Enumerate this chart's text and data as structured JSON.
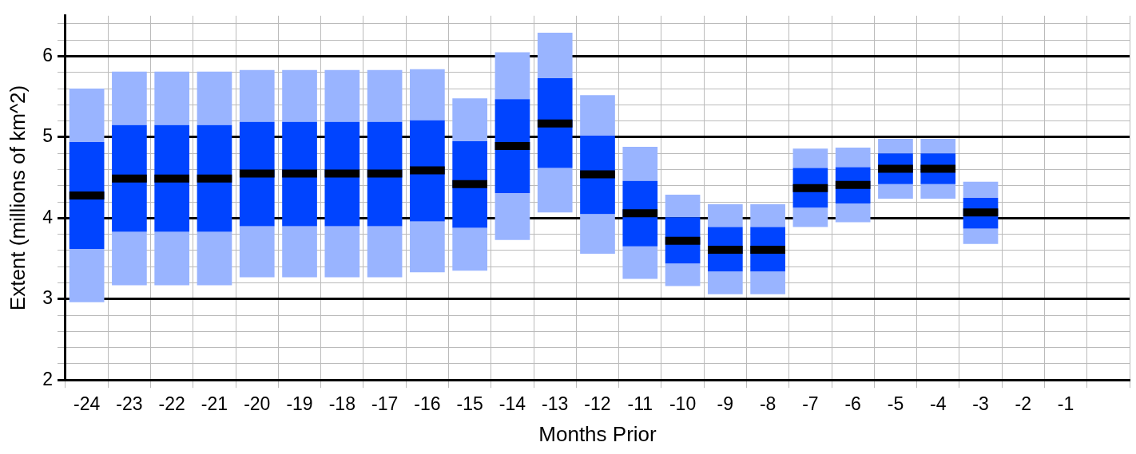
{
  "chart_data": {
    "type": "box",
    "xlabel": "Months Prior",
    "ylabel": "Extent (millions of km^2)",
    "categories": [
      "-24",
      "-23",
      "-22",
      "-21",
      "-20",
      "-19",
      "-18",
      "-17",
      "-16",
      "-15",
      "-14",
      "-13",
      "-12",
      "-11",
      "-10",
      "-9",
      "-8",
      "-7",
      "-6",
      "-5",
      "-4",
      "-3",
      "-2",
      "-1",
      null
    ],
    "ylim": [
      2,
      6.5
    ],
    "yticks": [
      2,
      {
        "value": 2.2,
        "label": null
      },
      {
        "value": 2.4,
        "label": null
      },
      {
        "value": 2.6,
        "label": null
      },
      {
        "value": 2.8,
        "label": null
      },
      3,
      {
        "value": 3.2,
        "label": null
      },
      {
        "value": 3.4,
        "label": null
      },
      {
        "value": 3.6,
        "label": null
      },
      {
        "value": 3.8,
        "label": null
      },
      4,
      {
        "value": 4.2,
        "label": null
      },
      {
        "value": 4.4,
        "label": null
      },
      {
        "value": 4.6,
        "label": null
      },
      {
        "value": 4.8,
        "label": null
      },
      5,
      {
        "value": 5.2,
        "label": null
      },
      {
        "value": 5.4,
        "label": null
      },
      {
        "value": 5.6,
        "label": null
      },
      {
        "value": 5.8,
        "label": null
      },
      6,
      {
        "value": 6.2,
        "label": null
      },
      {
        "value": 6.4,
        "label": null
      }
    ],
    "grid": true,
    "series": [
      {
        "color": "#0044ff",
        "boxes": [
          {
            "low": 2.96,
            "q1": 3.62,
            "median": 4.28,
            "q3": 4.94,
            "high": 5.6
          },
          {
            "low": 3.17,
            "q1": 3.83,
            "median": 4.49,
            "q3": 5.15,
            "high": 5.81
          },
          {
            "low": 3.17,
            "q1": 3.83,
            "median": 4.49,
            "q3": 5.15,
            "high": 5.81
          },
          {
            "low": 3.17,
            "q1": 3.83,
            "median": 4.49,
            "q3": 5.15,
            "high": 5.81
          },
          {
            "low": 3.27,
            "q1": 3.9,
            "median": 4.55,
            "q3": 5.19,
            "high": 5.83
          },
          {
            "low": 3.27,
            "q1": 3.9,
            "median": 4.55,
            "q3": 5.19,
            "high": 5.83
          },
          {
            "low": 3.27,
            "q1": 3.9,
            "median": 4.55,
            "q3": 5.19,
            "high": 5.83
          },
          {
            "low": 3.27,
            "q1": 3.9,
            "median": 4.55,
            "q3": 5.19,
            "high": 5.83
          },
          {
            "low": 3.33,
            "q1": 3.96,
            "median": 4.59,
            "q3": 5.21,
            "high": 5.84
          },
          {
            "low": 3.35,
            "q1": 3.88,
            "median": 4.42,
            "q3": 4.95,
            "high": 5.48
          },
          {
            "low": 3.73,
            "q1": 4.31,
            "median": 4.89,
            "q3": 5.47,
            "high": 6.05
          },
          {
            "low": 4.07,
            "q1": 4.62,
            "median": 5.17,
            "q3": 5.73,
            "high": 6.29
          },
          {
            "low": 3.56,
            "q1": 4.05,
            "median": 4.54,
            "q3": 5.02,
            "high": 5.52
          },
          {
            "low": 3.25,
            "q1": 3.65,
            "median": 4.06,
            "q3": 4.46,
            "high": 4.88
          },
          {
            "low": 3.16,
            "q1": 3.44,
            "median": 3.72,
            "q3": 4.01,
            "high": 4.29
          },
          {
            "low": 3.06,
            "q1": 3.34,
            "median": 3.61,
            "q3": 3.89,
            "high": 4.17
          },
          {
            "low": 3.06,
            "q1": 3.34,
            "median": 3.61,
            "q3": 3.89,
            "high": 4.17
          },
          {
            "low": 3.89,
            "q1": 4.13,
            "median": 4.37,
            "q3": 4.62,
            "high": 4.86
          },
          {
            "low": 3.95,
            "q1": 4.18,
            "median": 4.41,
            "q3": 4.63,
            "high": 4.87
          },
          {
            "low": 4.24,
            "q1": 4.42,
            "median": 4.61,
            "q3": 4.8,
            "high": 4.98
          },
          {
            "low": 4.24,
            "q1": 4.42,
            "median": 4.61,
            "q3": 4.8,
            "high": 4.98
          },
          {
            "low": 3.68,
            "q1": 3.87,
            "median": 4.07,
            "q3": 4.25,
            "high": 4.45
          },
          null,
          null,
          null
        ]
      }
    ]
  }
}
